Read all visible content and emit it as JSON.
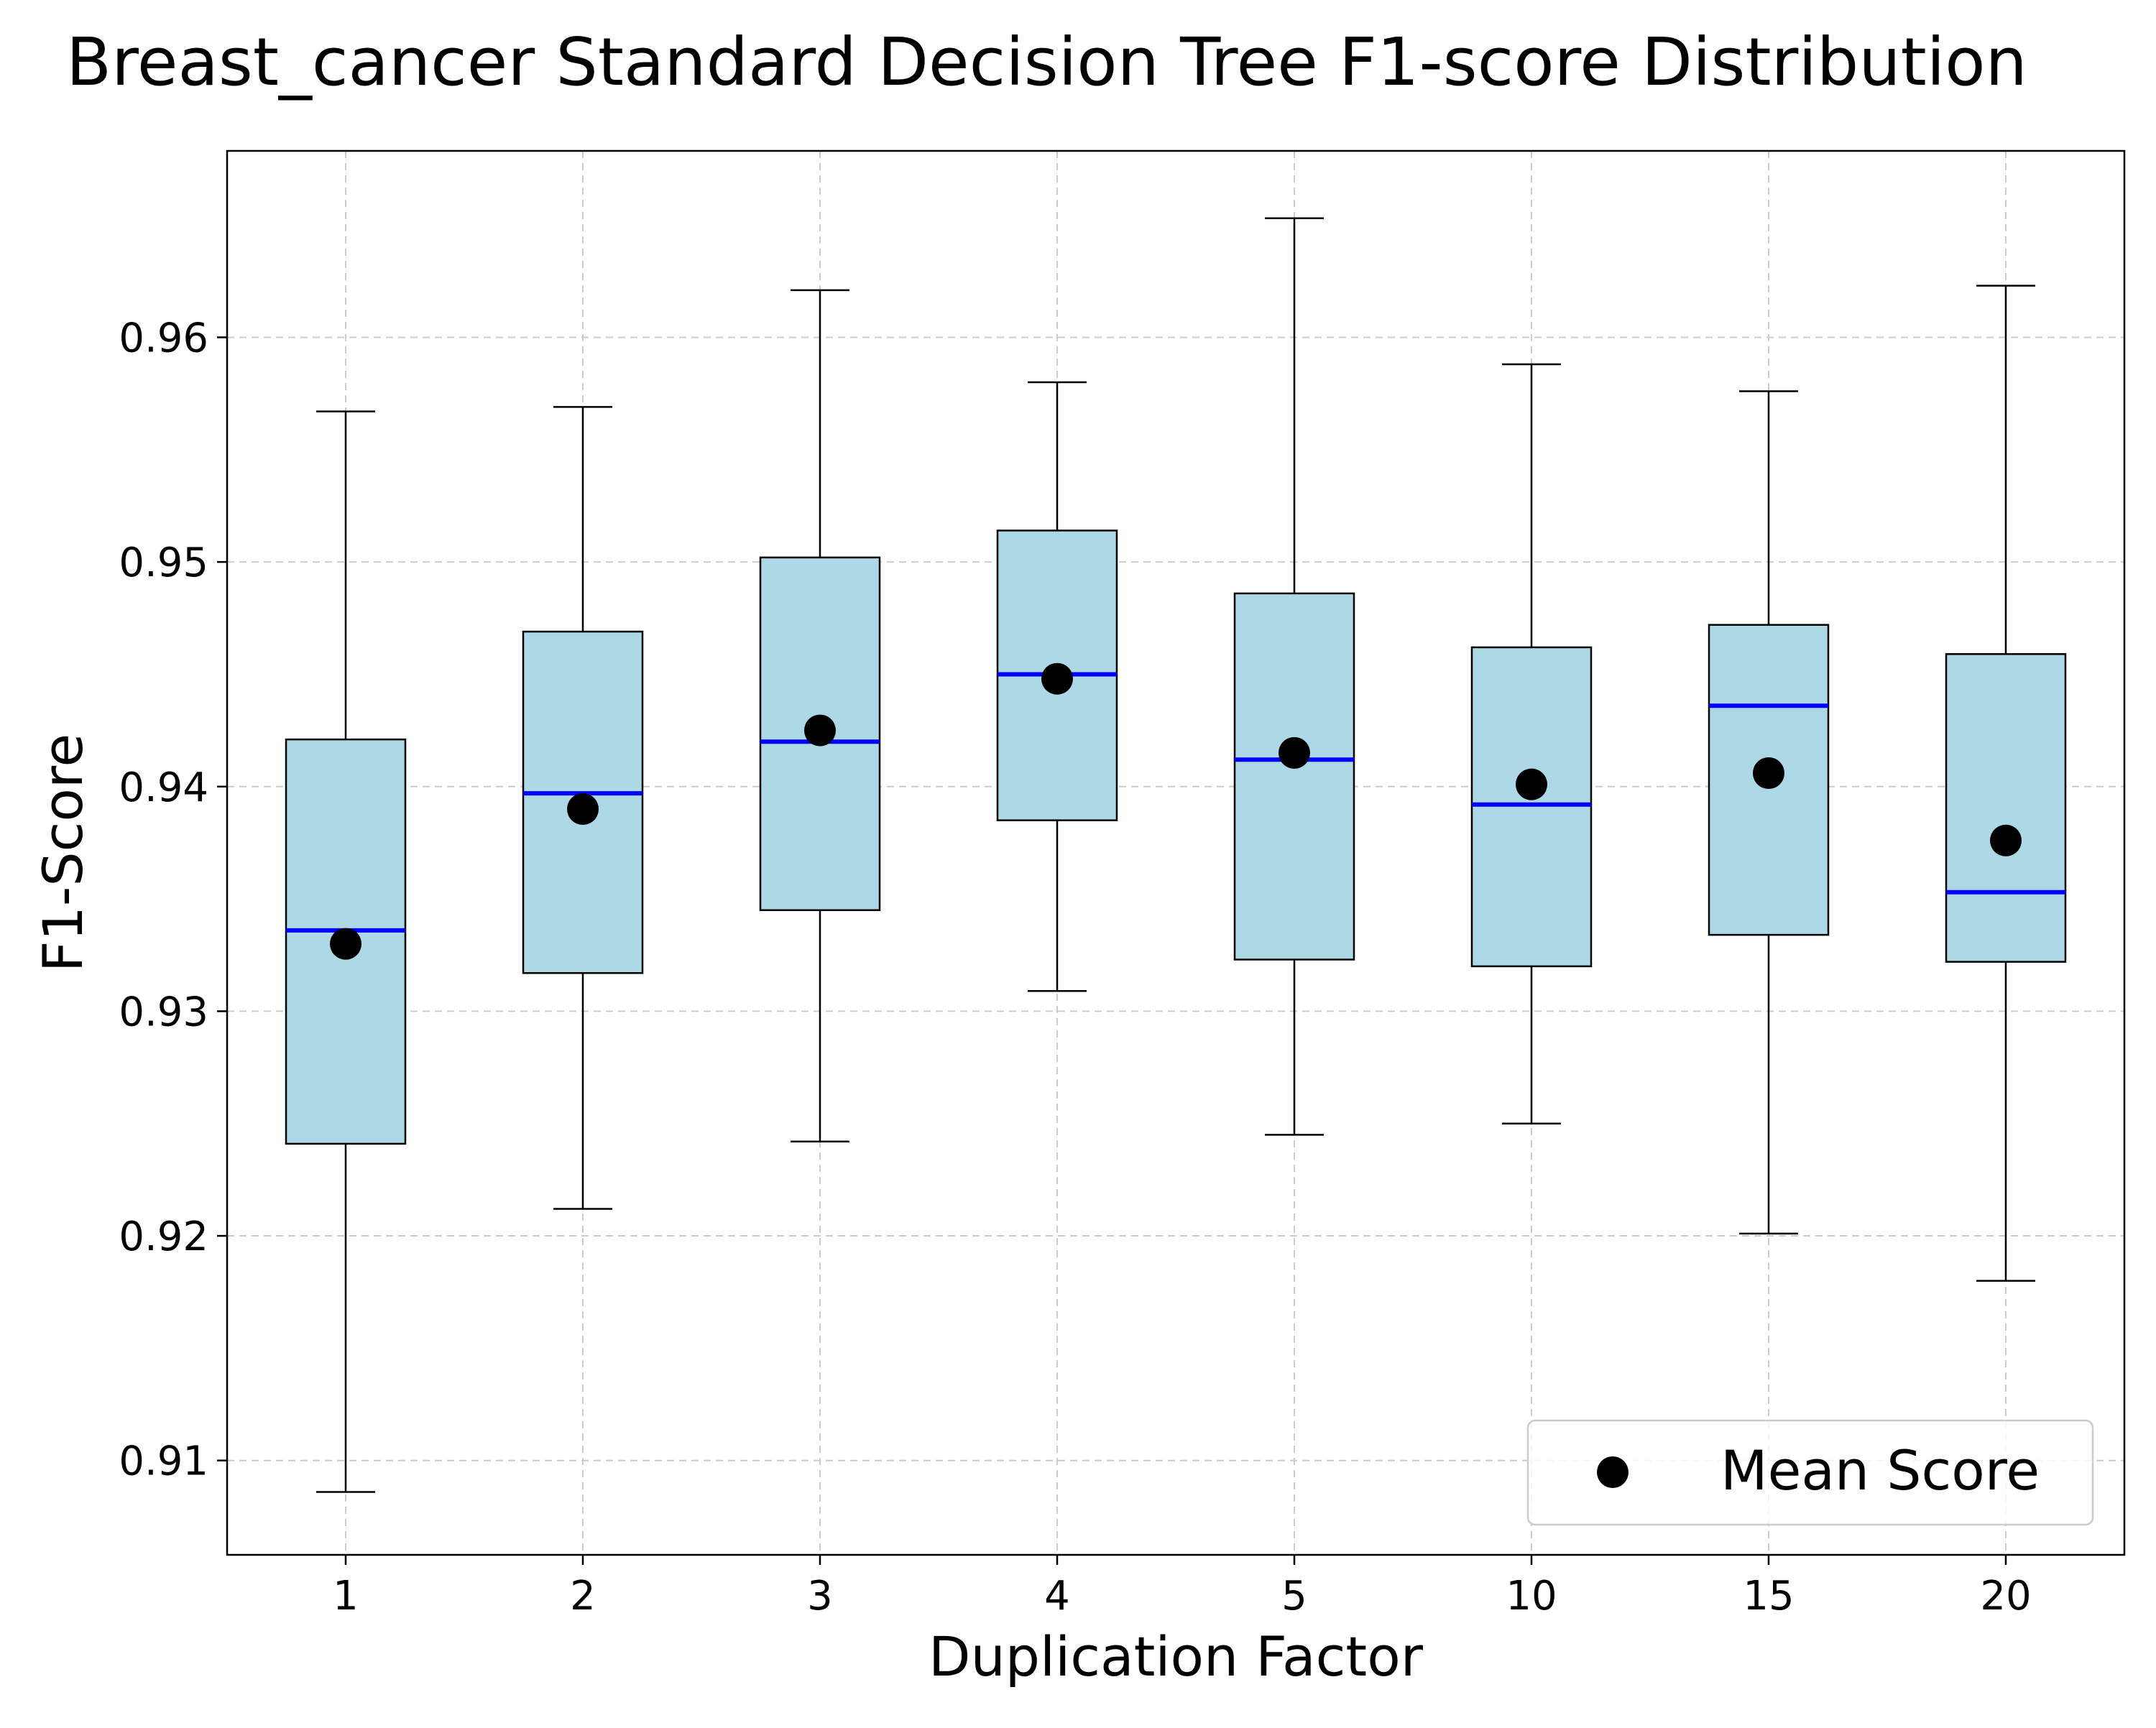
{
  "chart_data": {
    "type": "box",
    "title": "Breast_cancer Standard Decision Tree F1-score Distribution",
    "xlabel": "Duplication Factor",
    "ylabel": "F1-Score",
    "categories": [
      "1",
      "2",
      "3",
      "4",
      "5",
      "10",
      "15",
      "20"
    ],
    "ylim": [
      0.9058,
      0.9683
    ],
    "yticks": [
      0.91,
      0.92,
      0.93,
      0.94,
      0.95,
      0.96
    ],
    "ytick_labels": [
      "0.91",
      "0.92",
      "0.93",
      "0.94",
      "0.95",
      "0.96"
    ],
    "grid": true,
    "legend": {
      "position": "lower-right",
      "entries": [
        "Mean Score"
      ]
    },
    "boxes": [
      {
        "category": "1",
        "whisker_low": 0.9086,
        "q1": 0.9241,
        "median": 0.9336,
        "q3": 0.9421,
        "whisker_high": 0.9567,
        "mean": 0.933
      },
      {
        "category": "2",
        "whisker_low": 0.9212,
        "q1": 0.9317,
        "median": 0.9397,
        "q3": 0.9469,
        "whisker_high": 0.9569,
        "mean": 0.939
      },
      {
        "category": "3",
        "whisker_low": 0.9242,
        "q1": 0.9345,
        "median": 0.942,
        "q3": 0.9502,
        "whisker_high": 0.9621,
        "mean": 0.9425
      },
      {
        "category": "4",
        "whisker_low": 0.9309,
        "q1": 0.9385,
        "median": 0.945,
        "q3": 0.9514,
        "whisker_high": 0.958,
        "mean": 0.9448
      },
      {
        "category": "5",
        "whisker_low": 0.9245,
        "q1": 0.9323,
        "median": 0.9412,
        "q3": 0.9486,
        "whisker_high": 0.9653,
        "mean": 0.9415
      },
      {
        "category": "10",
        "whisker_low": 0.925,
        "q1": 0.932,
        "median": 0.9392,
        "q3": 0.9462,
        "whisker_high": 0.9588,
        "mean": 0.9401
      },
      {
        "category": "15",
        "whisker_low": 0.9201,
        "q1": 0.9334,
        "median": 0.9436,
        "q3": 0.9472,
        "whisker_high": 0.9576,
        "mean": 0.9406
      },
      {
        "category": "20",
        "whisker_low": 0.918,
        "q1": 0.9322,
        "median": 0.9353,
        "q3": 0.9459,
        "whisker_high": 0.9623,
        "mean": 0.9376
      }
    ],
    "colors": {
      "box_fill": "#add8e6",
      "box_edge": "#000000",
      "median": "#0000ff",
      "mean_marker": "#000000",
      "grid": "#cccccc"
    }
  }
}
